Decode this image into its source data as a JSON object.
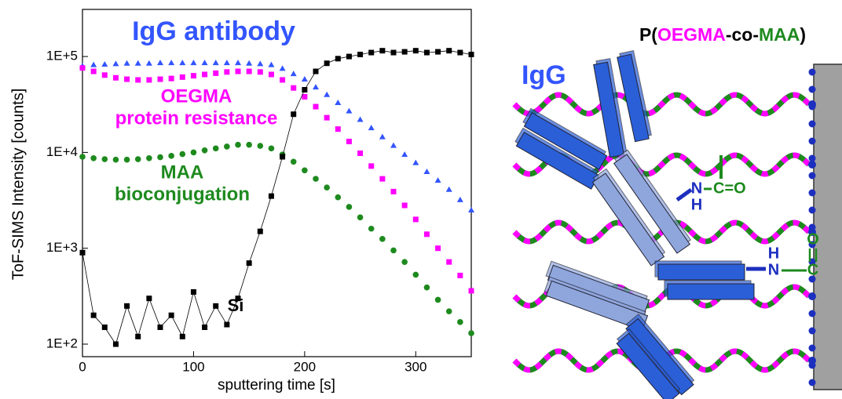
{
  "chart_data": {
    "type": "scatter",
    "log_y": true,
    "title": "IgG antibody",
    "x_label": "sputtering time [s]",
    "y_label": "ToF-SIMS Intensity [counts]",
    "xlim": [
      0,
      350
    ],
    "xticks": [
      0,
      100,
      200,
      300
    ],
    "ylim": [
      74,
      310000
    ],
    "yticks": [
      {
        "value": 100,
        "label": "1E+2"
      },
      {
        "value": 1000,
        "label": "1E+3"
      },
      {
        "value": 10000,
        "label": "1E+4"
      },
      {
        "value": 100000,
        "label": "1E+5"
      }
    ],
    "x": [
      0,
      10,
      20,
      30,
      40,
      50,
      60,
      70,
      80,
      90,
      100,
      110,
      120,
      130,
      140,
      150,
      160,
      170,
      180,
      190,
      200,
      210,
      220,
      230,
      240,
      250,
      260,
      270,
      280,
      290,
      300,
      310,
      320,
      330,
      340,
      350
    ],
    "series": [
      {
        "name": "IgG antibody",
        "color": "#3355ff",
        "marker": "triangle",
        "values": [
          80000,
          82000,
          83000,
          84000,
          85000,
          85000,
          85000,
          86000,
          86000,
          86000,
          86000,
          86000,
          86000,
          86000,
          86000,
          85000,
          84000,
          82000,
          75000,
          66000,
          58000,
          48000,
          40000,
          33000,
          27000,
          22000,
          18000,
          14500,
          11800,
          9500,
          7800,
          6300,
          5100,
          4100,
          3200,
          2500
        ]
      },
      {
        "name": "OEGMA",
        "color": "#ff00ff",
        "marker": "square",
        "values": [
          76000,
          70000,
          64000,
          60000,
          58000,
          57000,
          57000,
          58000,
          59000,
          61000,
          63000,
          65000,
          67000,
          69000,
          70000,
          70000,
          69000,
          65000,
          57000,
          47000,
          38000,
          30000,
          23000,
          17500,
          13000,
          9800,
          7200,
          5300,
          3900,
          2800,
          2000,
          1400,
          1000,
          720,
          520,
          360
        ]
      },
      {
        "name": "MAA",
        "color": "#1e8a1e",
        "marker": "circle",
        "values": [
          9000,
          8700,
          8500,
          8400,
          8400,
          8500,
          8700,
          8900,
          9200,
          9600,
          10000,
          10500,
          11000,
          11500,
          12000,
          12000,
          11700,
          11000,
          9500,
          8000,
          6500,
          5300,
          4300,
          3400,
          2700,
          2100,
          1600,
          1250,
          950,
          720,
          530,
          390,
          290,
          220,
          170,
          130
        ]
      },
      {
        "name": "Si",
        "color": "#000000",
        "marker": "square-line",
        "values": [
          900,
          200,
          150,
          100,
          250,
          120,
          300,
          150,
          200,
          120,
          350,
          150,
          250,
          160,
          300,
          700,
          1500,
          3500,
          9000,
          25000,
          45000,
          70000,
          85000,
          95000,
          100000,
          105000,
          110000,
          115000,
          110000,
          112000,
          115000,
          110000,
          112000,
          115000,
          110000,
          105000
        ]
      }
    ],
    "annotations": [
      "OEGMA",
      "protein resistance",
      "MAA",
      "bioconjugation",
      "Si"
    ]
  },
  "diagram": {
    "polymer_label": [
      "P(",
      "OEGMA",
      "-co-",
      "MAA",
      ")"
    ],
    "igg_label": "IgG",
    "amide_1": {
      "n": "N",
      "h": "H",
      "co": "C=O"
    },
    "amide_2": {
      "h": "H",
      "n": "N",
      "c": "C",
      "o": "O"
    }
  }
}
